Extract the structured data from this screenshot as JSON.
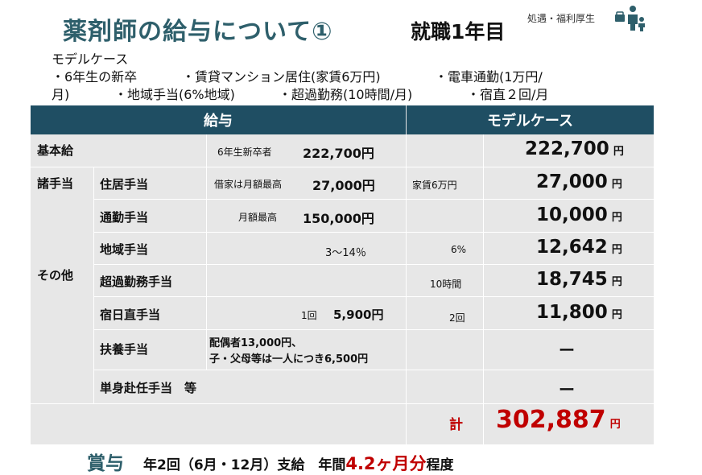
{
  "header": {
    "title": "薬剤師の給与について①",
    "subtitle": "就職1年目",
    "tag": "処遇・福利厚生"
  },
  "model": {
    "title": "モデルケース",
    "conditions": [
      "・6年生の新卒",
      "・賃貸マンション居住(家賃6万円)",
      "・電車通勤(1万円/",
      "月)",
      "・地域手当(6%地域)",
      "・超過勤務(10時間/月)",
      "・宿直２回/月"
    ]
  },
  "table": {
    "col_salary": "給与",
    "col_model": "モデルケース",
    "group_allowance": "諸手当",
    "group_other": "その他",
    "rows": [
      {
        "label": "基本給",
        "note": "6年生新卒者",
        "amount": "222,700円",
        "cond": "",
        "value": "222,700",
        "unit": "円"
      },
      {
        "label": "住居手当",
        "note": "借家は月額最高",
        "amount": "27,000円",
        "cond": "家賃6万円",
        "value": "27,000",
        "unit": "円"
      },
      {
        "label": "通勤手当",
        "note": "月額最高",
        "amount": "150,000円",
        "cond": "",
        "value": "10,000",
        "unit": "円"
      },
      {
        "label": "地域手当",
        "note": "",
        "amount": "3～14％",
        "cond": "6%",
        "value": "12,642",
        "unit": "円"
      },
      {
        "label": "超過勤務手当",
        "note": "",
        "amount": "",
        "cond": "10時間",
        "value": "18,745",
        "unit": "円"
      },
      {
        "label": "宿日直手当",
        "note": "1回",
        "amount": "5,900円",
        "cond": "2回",
        "value": "11,800",
        "unit": "円"
      },
      {
        "label": "扶養手当",
        "note": "配偶者13,000円、",
        "note2": "子・父母等は一人につき6,500円",
        "value": "ー"
      },
      {
        "label": "単身赴任手当　等",
        "value": "ー"
      }
    ],
    "total_label": "計",
    "total_value": "302,887",
    "total_unit": "円"
  },
  "bonus": {
    "label": "賞与",
    "text1": "年2回（6月・12月）支給　年間",
    "highlight": "4.2ヶ月分",
    "text2": "程度"
  },
  "colors": {
    "header_bg": "#1f4e63",
    "title": "#2e5f6b",
    "cell_bg": "#e7e7e7",
    "accent": "#c00000"
  }
}
